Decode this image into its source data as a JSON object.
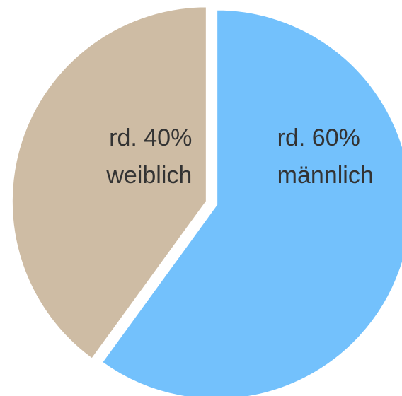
{
  "chart_data": {
    "type": "pie",
    "categories": [
      "männlich",
      "weiblich"
    ],
    "values": [
      60,
      40
    ],
    "value_labels": [
      "rd. 60%",
      "rd. 40%"
    ],
    "colors": [
      "#73c1fc",
      "#cebca4"
    ],
    "start_angle": 0,
    "direction": "clockwise",
    "exploded": true
  }
}
